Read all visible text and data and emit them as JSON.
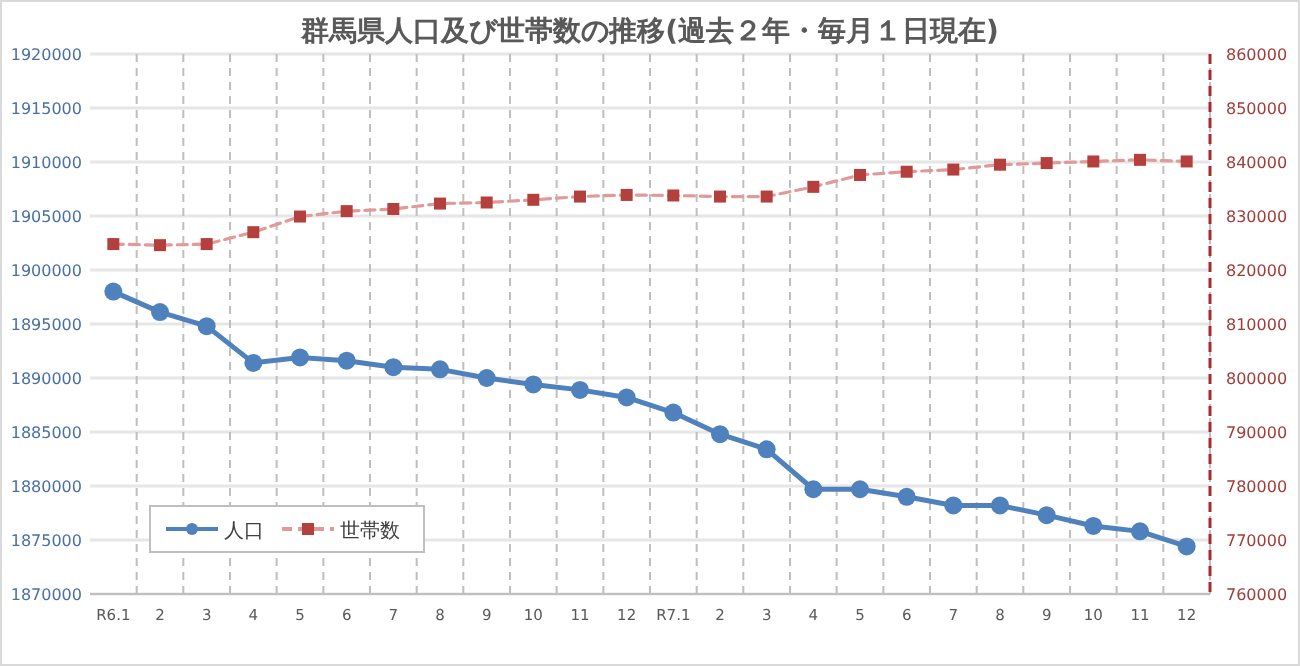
{
  "chart_data": {
    "type": "line",
    "title": "群馬県人口及び世帯数の推移(過去２年・毎月１日現在)",
    "categories": [
      "R6.1",
      "2",
      "3",
      "4",
      "5",
      "6",
      "7",
      "8",
      "9",
      "10",
      "11",
      "12",
      "R7.1",
      "2",
      "3",
      "4",
      "5",
      "6",
      "7",
      "8",
      "9",
      "10",
      "11",
      "12"
    ],
    "series": [
      {
        "name": "人口",
        "color": "#4f81bd",
        "marker": "circle",
        "line_style": "solid",
        "values": [
          1898000,
          1896100,
          1894800,
          1891400,
          1891900,
          1891600,
          1891000,
          1890800,
          1890000,
          1889400,
          1888900,
          1888200,
          1886800,
          1884800,
          1883400,
          1879700,
          1879700,
          1879000,
          1878200,
          1878200,
          1877300,
          1876300,
          1875800,
          1874400
        ]
      },
      {
        "name": "世帯数",
        "color": "#c0504d",
        "marker": "square",
        "line_style": "dashed",
        "axis": "y2",
        "values": [
          824800,
          824600,
          824800,
          827000,
          829900,
          830900,
          831300,
          832300,
          832500,
          833000,
          833600,
          833900,
          833800,
          833600,
          833600,
          835400,
          837600,
          838200,
          838600,
          839500,
          839800,
          840100,
          840400,
          840100
        ]
      }
    ],
    "ylim": [
      1870000,
      1920000
    ],
    "yticks": [
      1870000,
      1875000,
      1880000,
      1885000,
      1890000,
      1895000,
      1900000,
      1905000,
      1910000,
      1915000,
      1920000
    ],
    "y2lim": [
      760000,
      860000
    ],
    "y2ticks": [
      760000,
      770000,
      780000,
      790000,
      800000,
      810000,
      820000,
      830000,
      840000,
      850000,
      860000
    ],
    "grid": true,
    "legend": "bottom left"
  }
}
